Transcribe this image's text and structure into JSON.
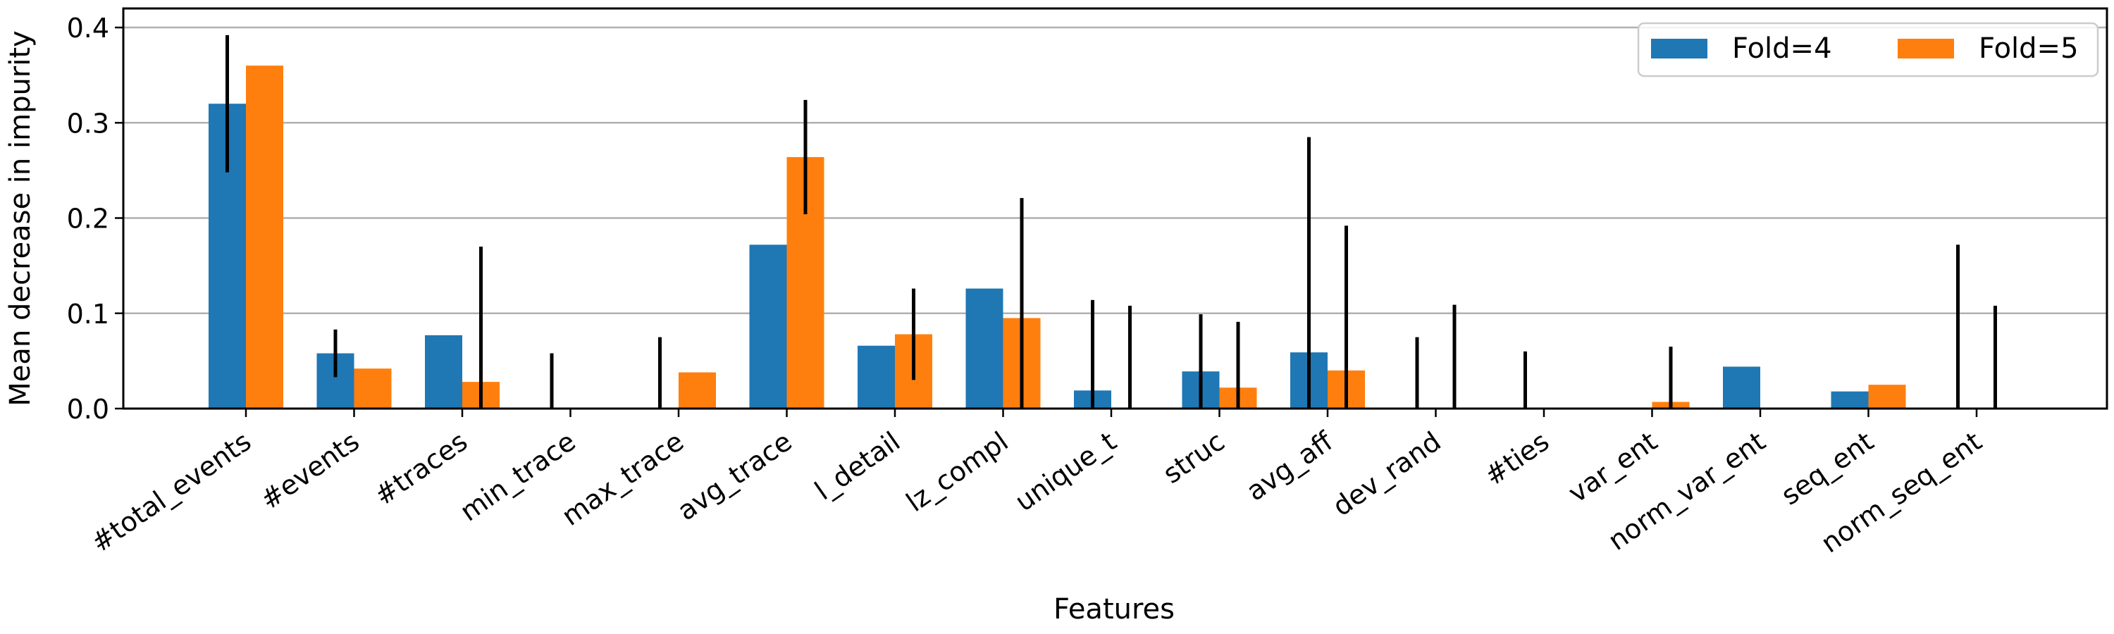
{
  "chart_data": {
    "type": "bar",
    "title": "",
    "xlabel": "Features",
    "ylabel": "Mean decrease in impurity",
    "ylim": [
      0,
      0.42
    ],
    "yticks": [
      0.0,
      0.1,
      0.2,
      0.3,
      0.4
    ],
    "ytick_labels": [
      "0.0",
      "0.1",
      "0.2",
      "0.3",
      "0.4"
    ],
    "grid": "horizontal",
    "legend_position": "top-right",
    "categories": [
      "#total_events",
      "#events",
      "#traces",
      "min_trace",
      "max_trace",
      "avg_trace",
      "l_detail",
      "lz_compl",
      "unique_t",
      "struc",
      "avg_aff",
      "dev_rand",
      "#ties",
      "var_ent",
      "norm_var_ent",
      "seq_ent",
      "norm_seq_ent"
    ],
    "series": [
      {
        "name": "Fold=4",
        "color": "#1f77b4",
        "values": [
          0.32,
          0.058,
          0.077,
          0.0,
          0.0,
          0.172,
          0.066,
          0.126,
          0.019,
          0.039,
          0.059,
          0.0,
          0.0,
          0.0,
          0.044,
          0.018,
          0.0
        ],
        "errors": [
          0.072,
          0.025,
          0.0,
          0.058,
          0.075,
          0.0,
          0.0,
          0.0,
          0.095,
          0.06,
          0.226,
          0.075,
          0.06,
          0.0,
          0.0,
          0.0,
          0.172
        ]
      },
      {
        "name": "Fold=5",
        "color": "#ff7f0e",
        "values": [
          0.36,
          0.042,
          0.028,
          0.0,
          0.038,
          0.264,
          0.078,
          0.095,
          0.0,
          0.022,
          0.04,
          0.0,
          0.0,
          0.007,
          0.0,
          0.025,
          0.0
        ],
        "errors": [
          0.0,
          0.0,
          0.142,
          0.0,
          0.0,
          0.06,
          0.048,
          0.126,
          0.108,
          0.069,
          0.152,
          0.109,
          0.0,
          0.058,
          0.0,
          0.0,
          0.108
        ]
      }
    ]
  }
}
